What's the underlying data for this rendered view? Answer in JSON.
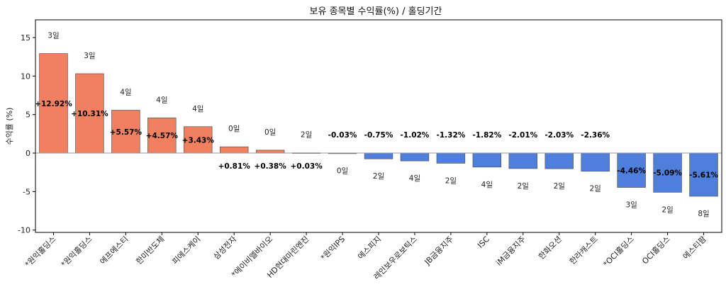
{
  "chart_data": {
    "type": "bar",
    "title": "보유 종목별 수익률(%) / 홀딩기간",
    "xlabel": "",
    "ylabel": "수익률 (%)",
    "ylim": [
      -10.3,
      17.3
    ],
    "yticks": [
      -10,
      -5,
      0,
      5,
      10,
      15
    ],
    "categories": [
      "*원익홀딩스",
      "*원익홀딩스",
      "에프에스티",
      "한미반도체",
      "피에스케이",
      "삼성전자",
      "*에이비엘바이오",
      "HD현대마린엔진",
      "*원익IPS",
      "에스피지",
      "레인보우로보틱스",
      "JB금융지주",
      "ISC",
      "iM금융지주",
      "한화오션",
      "한라캐스트",
      "*OCI홀딩스",
      "OCI홀딩스",
      "에스티팜"
    ],
    "values": [
      12.92,
      10.31,
      5.57,
      4.57,
      3.43,
      0.81,
      0.38,
      0.03,
      -0.03,
      -0.75,
      -1.02,
      -1.32,
      -1.82,
      -2.01,
      -2.03,
      -2.36,
      -4.46,
      -5.09,
      -5.61
    ],
    "value_labels": [
      "+12.92%",
      "+10.31%",
      "+5.57%",
      "+4.57%",
      "+3.43%",
      "+0.81%",
      "+0.38%",
      "+0.03%",
      "-0.03%",
      "-0.75%",
      "-1.02%",
      "-1.32%",
      "-1.82%",
      "-2.01%",
      "-2.03%",
      "-2.36%",
      "-4.46%",
      "-5.09%",
      "-5.61%"
    ],
    "holding_days": [
      "3일",
      "3일",
      "4일",
      "4일",
      "4일",
      "0일",
      "0일",
      "2일",
      "0일",
      "2일",
      "4일",
      "2일",
      "4일",
      "2일",
      "2일",
      "2일",
      "3일",
      "2일",
      "8일"
    ],
    "colors": {
      "positive": "#f08060",
      "negative": "#4f7fdc",
      "zero_line": "#999999"
    },
    "grid": false,
    "legend": "none"
  }
}
